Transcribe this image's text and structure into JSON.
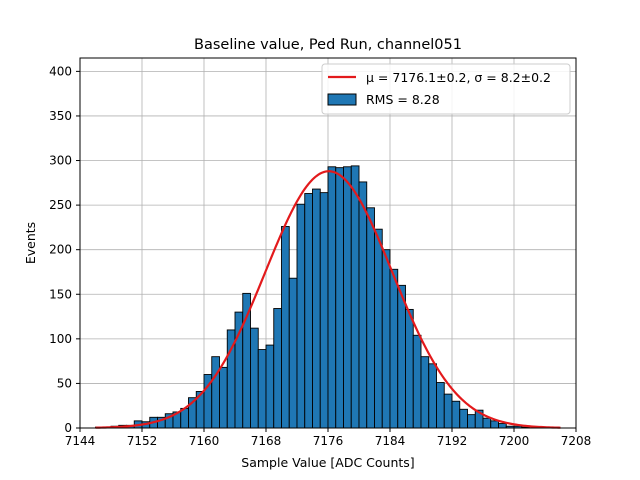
{
  "chart_data": {
    "type": "histogram",
    "title": "Baseline value, Ped Run, channel051",
    "xlabel": "Sample Value [ADC Counts]",
    "ylabel": "Events",
    "xlim": [
      7144,
      7208
    ],
    "ylim": [
      0,
      415
    ],
    "x_ticks": [
      7144,
      7152,
      7160,
      7168,
      7176,
      7184,
      7192,
      7200,
      7208
    ],
    "y_ticks": [
      0,
      50,
      100,
      150,
      200,
      250,
      300,
      350,
      400
    ],
    "grid": true,
    "legend_position": "top-right",
    "bin_start": 7146,
    "bin_width": 1,
    "series": [
      {
        "name": "RMS = 8.28",
        "kind": "bars",
        "color": "#1f77b4",
        "edgecolor": "#000000",
        "values": [
          1,
          1,
          2,
          3,
          3,
          8,
          7,
          12,
          12,
          16,
          18,
          22,
          34,
          41,
          60,
          80,
          68,
          110,
          130,
          151,
          112,
          88,
          93,
          134,
          226,
          168,
          251,
          263,
          268,
          264,
          293,
          292,
          293,
          294,
          276,
          247,
          223,
          200,
          178,
          160,
          133,
          104,
          80,
          72,
          51,
          38,
          30,
          21,
          15,
          20,
          11,
          8,
          5,
          2,
          2,
          1
        ]
      },
      {
        "name": "μ = 7176.1±0.2, σ = 8.2±0.2",
        "kind": "gaussian_fit",
        "color": "#e31a1c",
        "mu": 7176.1,
        "sigma": 8.2,
        "amplitude": 288,
        "x_range": [
          7146,
          7206
        ]
      }
    ]
  }
}
